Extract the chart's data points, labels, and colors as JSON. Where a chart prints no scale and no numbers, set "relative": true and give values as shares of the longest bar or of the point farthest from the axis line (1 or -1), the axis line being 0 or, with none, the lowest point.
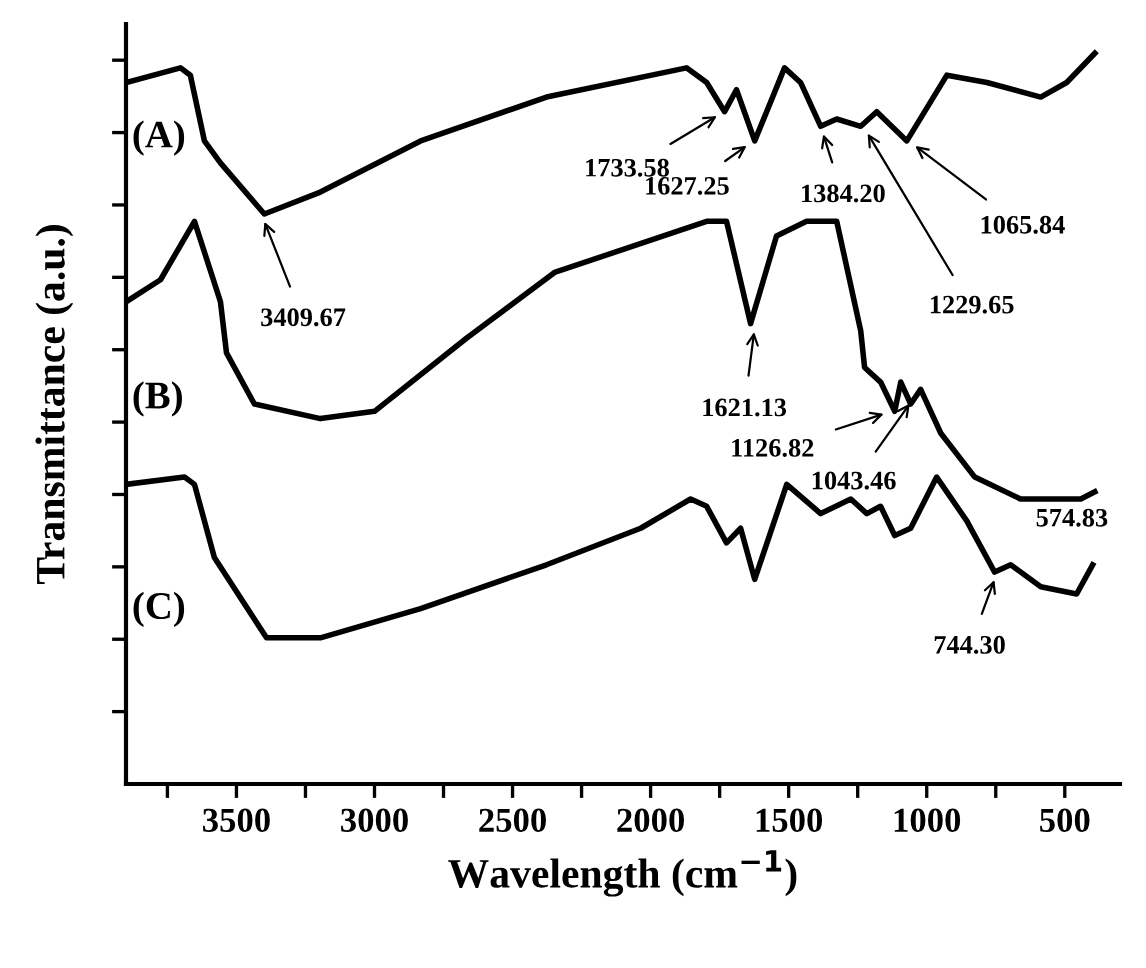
{
  "chart_data": {
    "type": "line",
    "relative": true,
    "xlabel": "Wavelength (cm$^{−1}$)",
    "ylabel": "Transmittance (a.u.)",
    "xlim": [
      3900,
      300
    ],
    "xticks": [
      {
        "value": 3750,
        "label": null
      },
      3500,
      {
        "value": 3250,
        "label": null
      },
      3000,
      {
        "value": 2750,
        "label": null
      },
      2500,
      {
        "value": 2250,
        "label": null
      },
      2000,
      {
        "value": 1750,
        "label": null
      },
      1500,
      {
        "value": 1250,
        "label": null
      },
      1000,
      {
        "value": 750,
        "label": null
      },
      500
    ],
    "tick_labels": "x",
    "grid": false,
    "legend": "left",
    "marker": "none",
    "line_style": "solid",
    "series": [
      {
        "name": "(A)",
        "color": "#000000",
        "x": [
          3899,
          3703,
          3667,
          3616,
          3558,
          3399,
          3196,
          2833,
          2377,
          1870,
          1797,
          1732,
          1689,
          1623,
          1515,
          1457,
          1384,
          1326,
          1239,
          1181,
          1072,
          927,
          782,
          587,
          493,
          391
        ],
        "values": [
          0.96,
          0.98,
          0.97,
          0.88,
          0.85,
          0.78,
          0.81,
          0.88,
          0.94,
          0.98,
          0.96,
          0.92,
          0.95,
          0.88,
          0.98,
          0.96,
          0.9,
          0.91,
          0.9,
          0.92,
          0.88,
          0.97,
          0.96,
          0.94,
          0.96,
          1.0
        ]
      },
      {
        "name": "(B)",
        "color": "#000000",
        "x": [
          3899,
          3775,
          3652,
          3558,
          3536,
          3435,
          3196,
          3000,
          2667,
          2348,
          1797,
          1725,
          1638,
          1544,
          1435,
          1326,
          1239,
          1225,
          1167,
          1116,
          1094,
          1058,
          1022,
          949,
          826,
          660,
          442,
          391
        ],
        "values": [
          0.66,
          0.69,
          0.77,
          0.66,
          0.59,
          0.52,
          0.5,
          0.51,
          0.61,
          0.7,
          0.77,
          0.77,
          0.63,
          0.75,
          0.77,
          0.77,
          0.62,
          0.57,
          0.55,
          0.51,
          0.55,
          0.52,
          0.54,
          0.48,
          0.42,
          0.39,
          0.39,
          0.4
        ]
      },
      {
        "name": "(C)",
        "color": "#000000",
        "x": [
          3899,
          3688,
          3652,
          3580,
          3391,
          3196,
          2833,
          2377,
          2036,
          1855,
          1797,
          1725,
          1674,
          1623,
          1507,
          1384,
          1275,
          1217,
          1167,
          1116,
          1058,
          964,
          855,
          754,
          696,
          587,
          457,
          399
        ],
        "values": [
          0.41,
          0.42,
          0.41,
          0.31,
          0.2,
          0.2,
          0.24,
          0.3,
          0.35,
          0.39,
          0.38,
          0.33,
          0.35,
          0.28,
          0.41,
          0.37,
          0.39,
          0.37,
          0.38,
          0.34,
          0.35,
          0.42,
          0.36,
          0.29,
          0.3,
          0.27,
          0.26,
          0.3
        ]
      }
    ],
    "annotations": [
      {
        "text": "3409.67",
        "x": 3409.67,
        "y": 0.78
      },
      {
        "text": "1733.58",
        "x": 1733.58,
        "y": 0.92
      },
      {
        "text": "1627.25",
        "x": 1627.25,
        "y": 0.88
      },
      {
        "text": "1384.20",
        "x": 1384.2,
        "y": 0.9
      },
      {
        "text": "1229.65",
        "x": 1229.65,
        "y": 0.9
      },
      {
        "text": "1065.84",
        "x": 1065.84,
        "y": 0.88
      },
      {
        "text": "1621.13",
        "x": 1621.13,
        "y": 0.63
      },
      {
        "text": "1126.82",
        "x": 1126.82,
        "y": 0.51
      },
      {
        "text": "1043.46",
        "x": 1043.46,
        "y": 0.53
      },
      {
        "text": "744.30",
        "x": 744.3,
        "y": 0.29
      },
      {
        "text": "574.83",
        "x": 574.83,
        "y": 0.27
      }
    ]
  }
}
